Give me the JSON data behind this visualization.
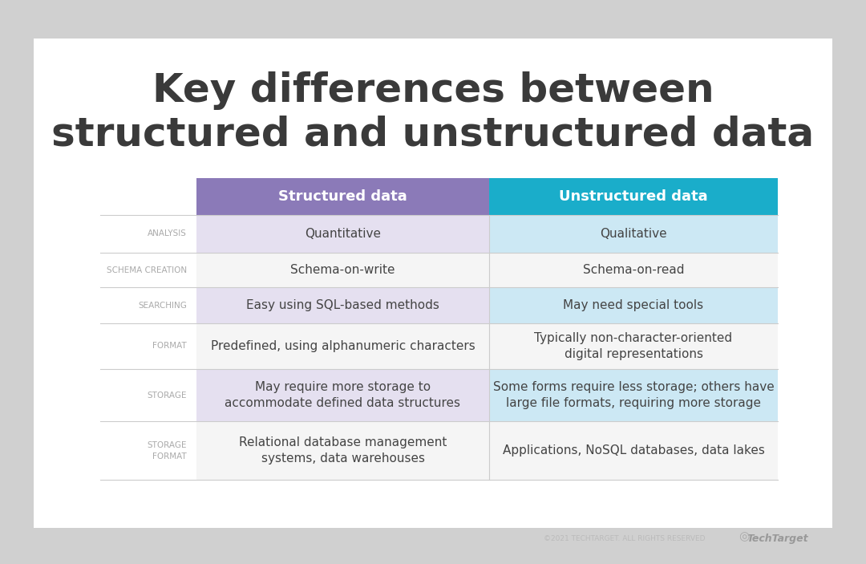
{
  "title_line1": "Key differences between",
  "title_line2": "structured and unstructured data",
  "title_color": "#3a3a3a",
  "background_outer": "#d0d0d0",
  "background_inner": "#ffffff",
  "header_structured_color": "#8b7ab8",
  "header_unstructured_color": "#1aadca",
  "header_text_color": "#ffffff",
  "col1_label": "Structured data",
  "col2_label": "Unstructured data",
  "row_label_color": "#aaaaaa",
  "row_labels": [
    "ANALYSIS",
    "SCHEMA CREATION",
    "SEARCHING",
    "FORMAT",
    "STORAGE",
    "STORAGE\nFORMAT"
  ],
  "structured_values": [
    "Quantitative",
    "Schema-on-write",
    "Easy using SQL-based methods",
    "Predefined, using alphanumeric characters",
    "May require more storage to\naccommodate defined data structures",
    "Relational database management\nsystems, data warehouses"
  ],
  "unstructured_values": [
    "Qualitative",
    "Schema-on-read",
    "May need special tools",
    "Typically non-character-oriented\ndigital representations",
    "Some forms require less storage; others have\nlarge file formats, requiring more storage",
    "Applications, NoSQL databases, data lakes"
  ],
  "row_bg_structured_odd": "#e5e0f0",
  "row_bg_structured_even": "#f5f5f5",
  "row_bg_unstructured_odd": "#cce8f4",
  "row_bg_unstructured_even": "#f5f5f5",
  "divider_color": "#cccccc",
  "footer_text": "©2021 TECHTARGET. ALL RIGHTS RESERVED",
  "footer_color": "#bbbbbb",
  "cell_text_color": "#444444",
  "cell_text_size": 11,
  "row_label_size": 7.5,
  "header_text_size": 13
}
